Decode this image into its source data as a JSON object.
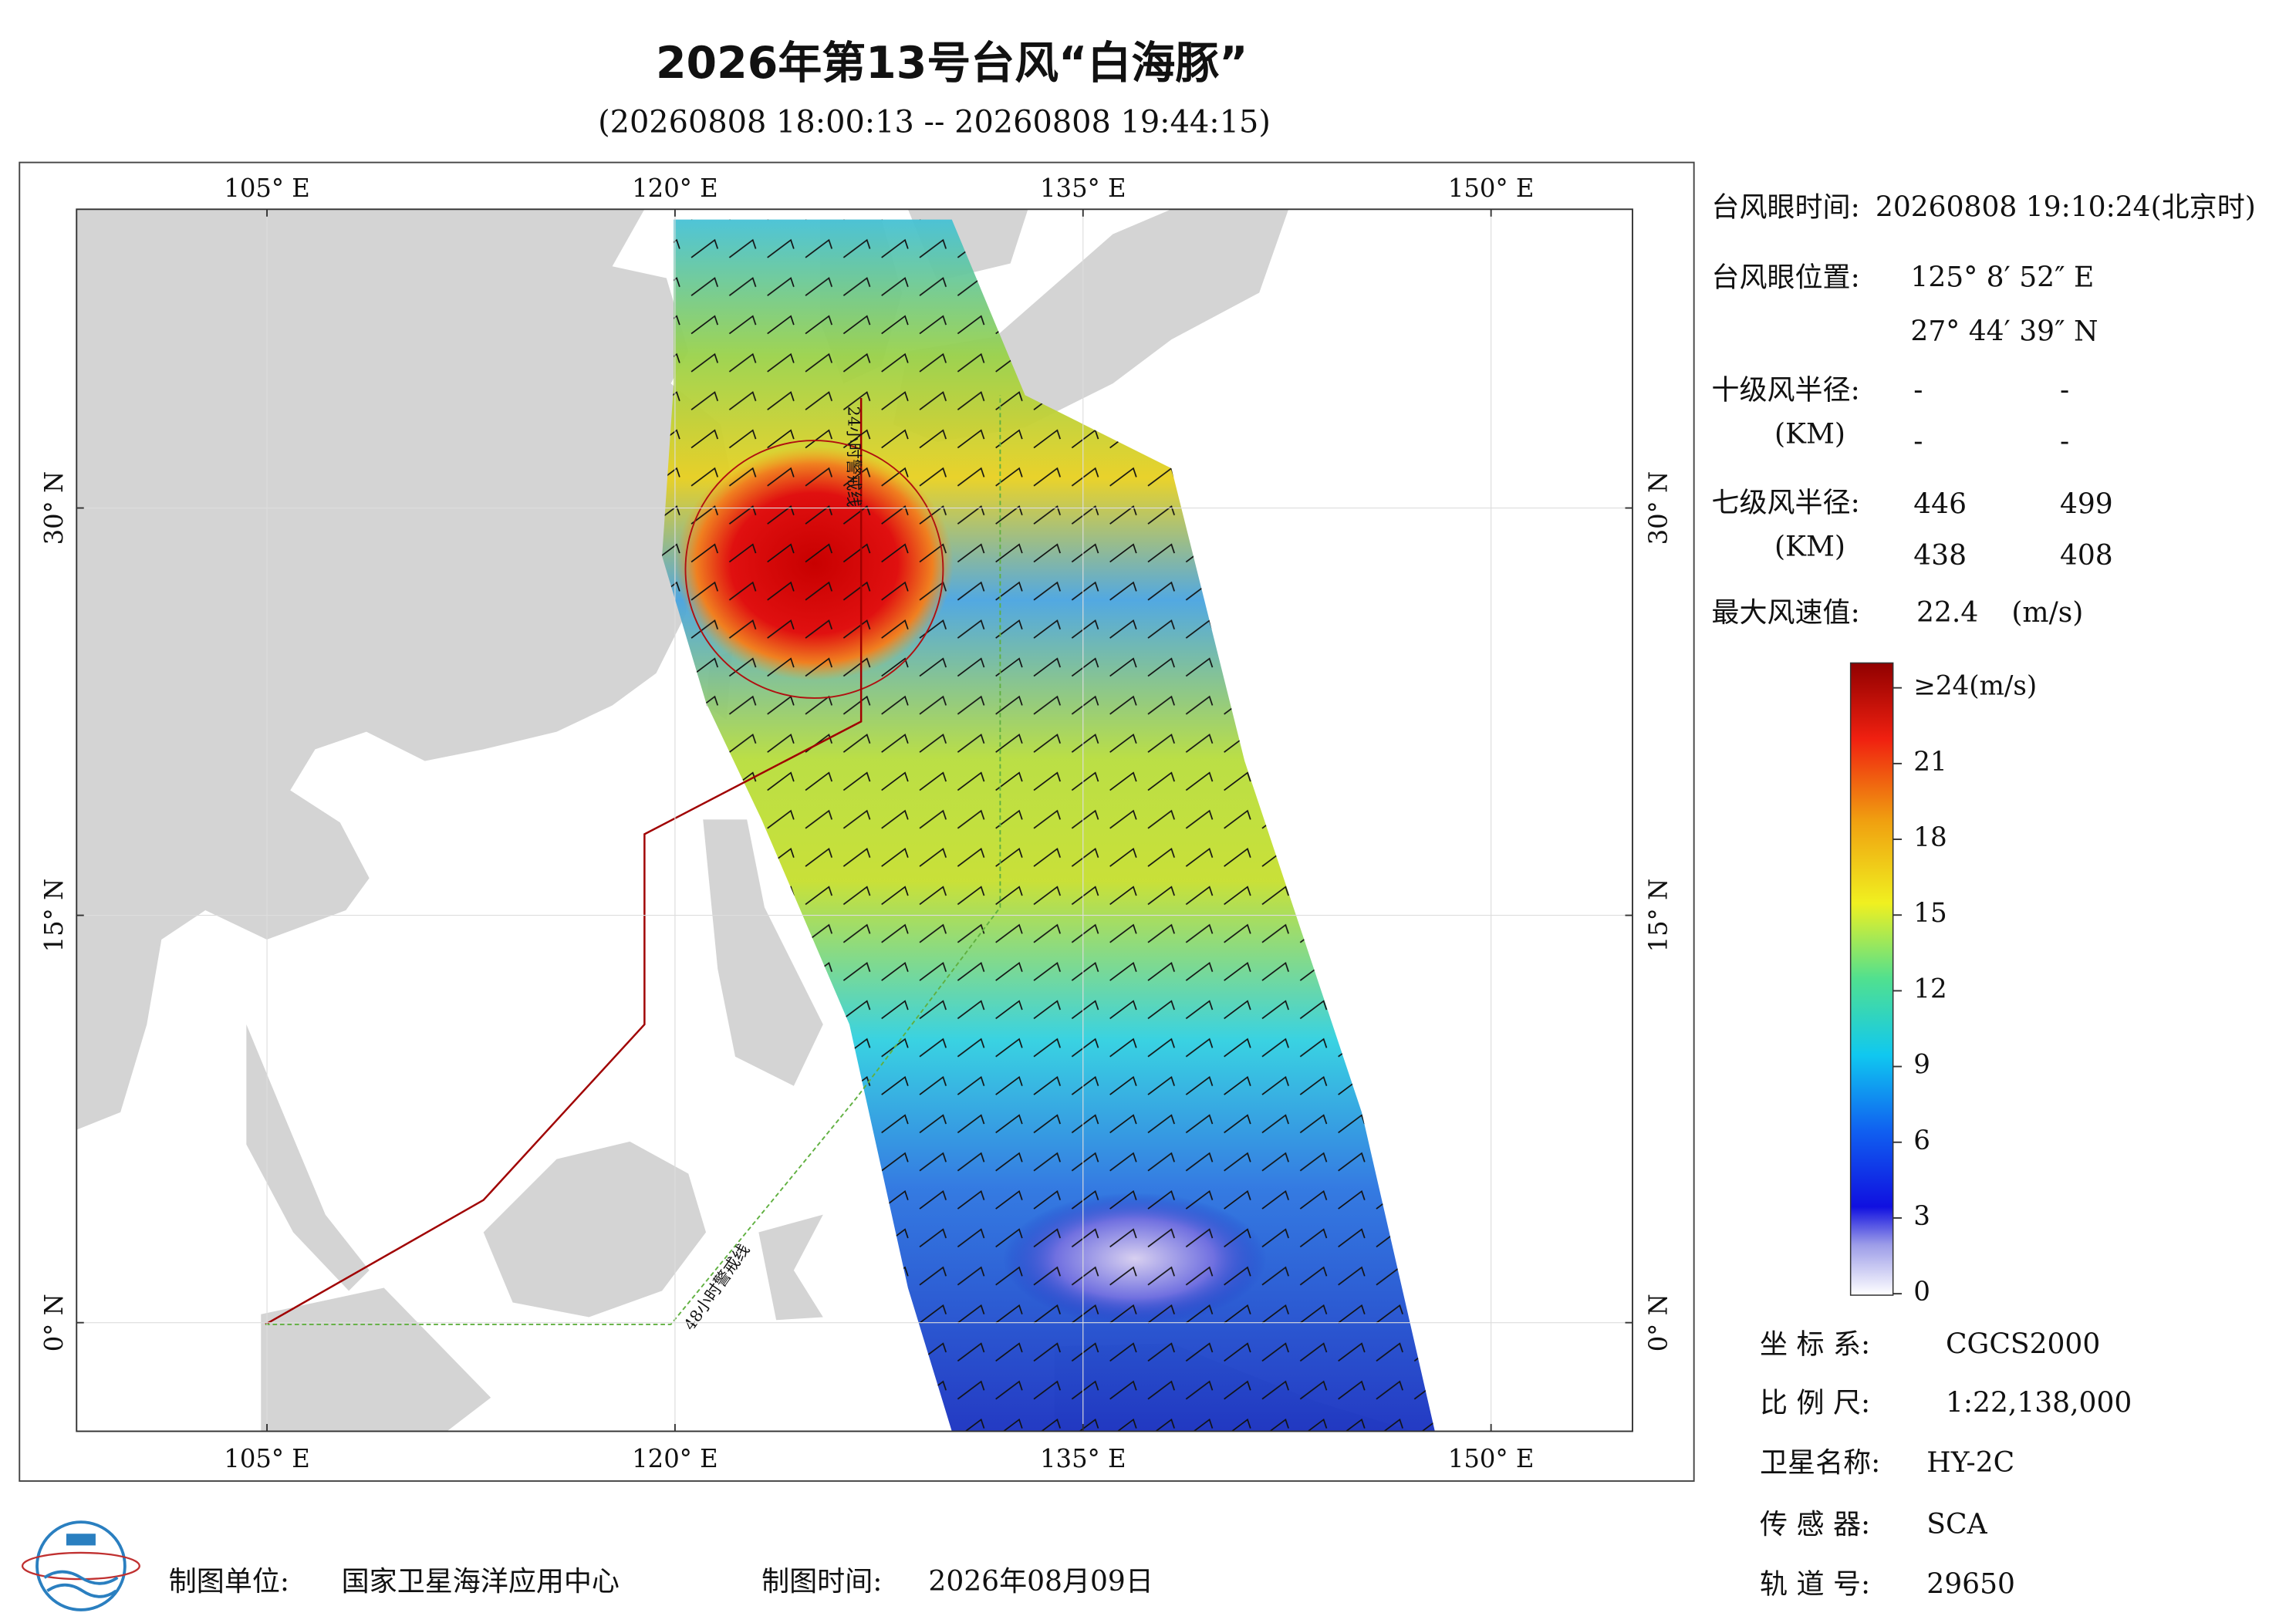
{
  "title": "2026年第13号台风“白海豚”",
  "subtitle": "(20260808 18:00:13 -- 20260808 19:44:15)",
  "map": {
    "xlim": [
      98,
      155.2
    ],
    "ylim": [
      -4,
      41
    ],
    "xticks": [
      {
        "value": 105,
        "label": "105° E"
      },
      {
        "value": 120,
        "label": "120° E"
      },
      {
        "value": 135,
        "label": "135° E"
      },
      {
        "value": 150,
        "label": "150° E"
      }
    ],
    "yticks": [
      {
        "value": 0,
        "label": "0° N"
      },
      {
        "value": 15,
        "label": "15° N"
      },
      {
        "value": 30,
        "label": "30° N"
      }
    ],
    "warning_line_24h": "24小时警戒线",
    "warning_line_48h": "48小时警戒线"
  },
  "info": {
    "eye_time_label": "台风眼时间:",
    "eye_time": "20260808 19:10:24(北京时)",
    "eye_position_label": "台风眼位置:",
    "eye_lon": "125° 8′ 52″ E",
    "eye_lat": "27° 44′ 39″ N",
    "r10_label": "十级风半径:",
    "r10_unit": "(KM)",
    "r10_values": [
      "-",
      "-",
      "-",
      "-"
    ],
    "r7_label": "七级风半径:",
    "r7_unit": "(KM)",
    "r7_values": [
      "446",
      "499",
      "438",
      "408"
    ],
    "max_wind_label": "最大风速值:",
    "max_wind": "22.4",
    "max_wind_unit": "(m/s)"
  },
  "colorbar": {
    "lim": [
      0,
      24
    ],
    "ticks": [
      0,
      3,
      6,
      9,
      12,
      15,
      18,
      21,
      {
        "value": 24,
        "label": "≥24(m/s)"
      }
    ]
  },
  "meta": {
    "crs_label": "坐 标 系:",
    "crs": "CGCS2000",
    "scale_label": "比 例 尺:",
    "scale": "1:22,138,000",
    "satellite_label": "卫星名称:",
    "satellite": "HY-2C",
    "sensor_label": "传 感 器:",
    "sensor": "SCA",
    "orbit_label": "轨 道 号:",
    "orbit": "29650"
  },
  "footer": {
    "producer_label": "制图单位:",
    "producer": "国家卫星海洋应用中心",
    "date_label": "制图时间:",
    "date": "2026年08月09日"
  }
}
